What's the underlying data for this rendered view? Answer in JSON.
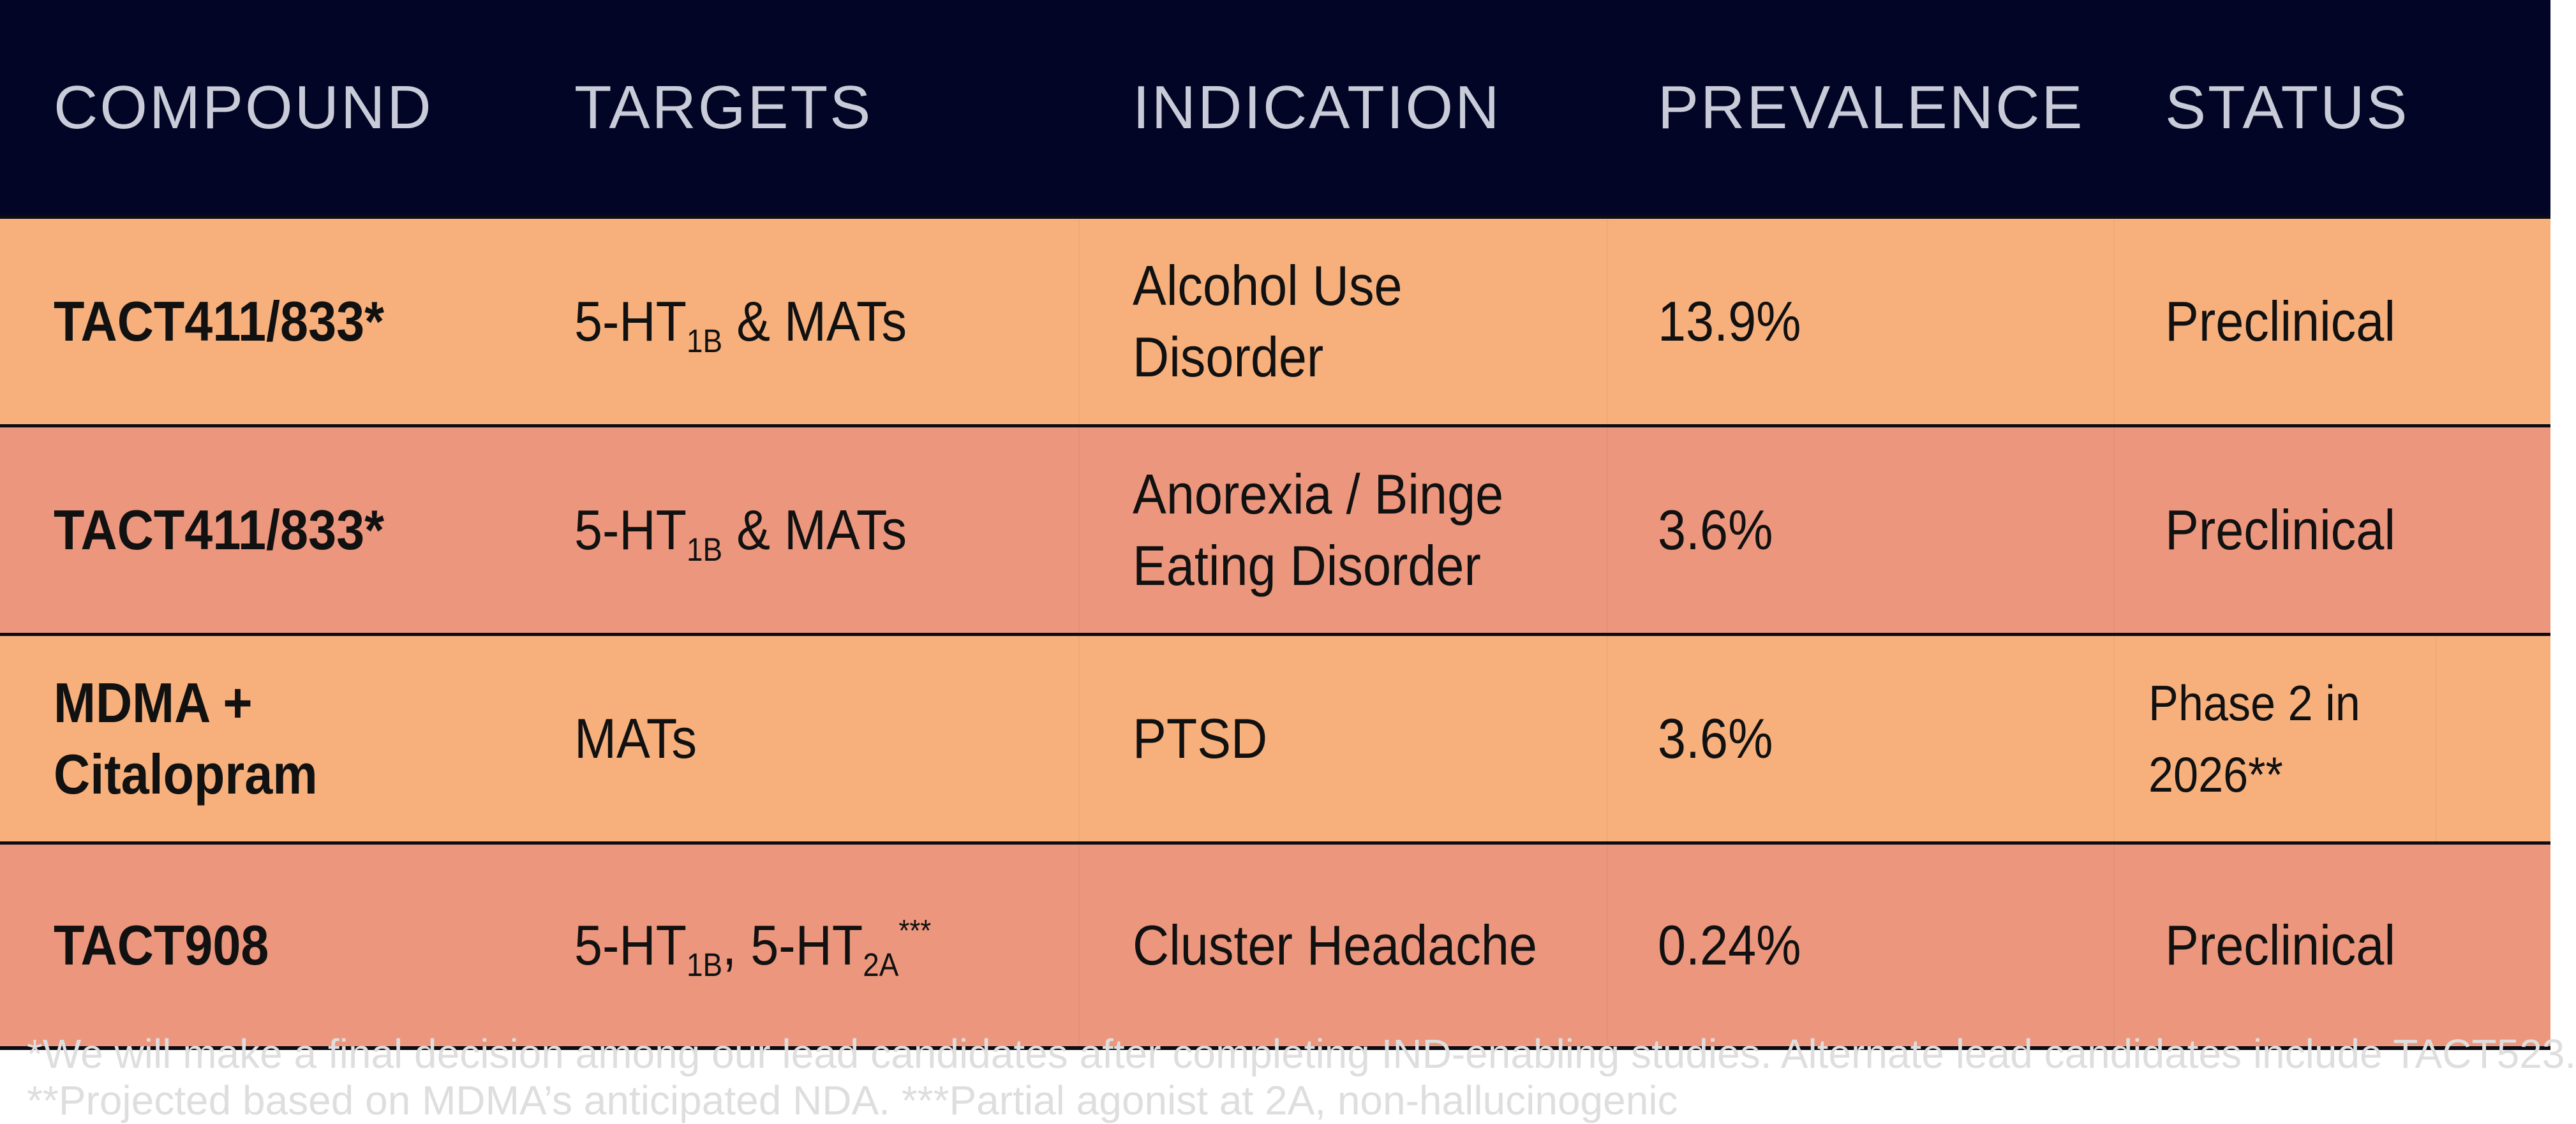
{
  "table": {
    "headers": [
      "COMPOUND",
      "TARGETS",
      "INDICATION",
      "PREVALENCE",
      "STATUS"
    ],
    "rows": [
      {
        "compound": "TACT411/833",
        "compound_mark": "*",
        "targets": {
          "pre": "5-HT",
          "sub1": "1B",
          "mid": " & MATs",
          "pre2": "",
          "sub2": "",
          "sup": ""
        },
        "indication": [
          "Alcohol Use",
          "Disorder"
        ],
        "prevalence": "13.9%",
        "status": "Preclinical"
      },
      {
        "compound": "TACT411/833",
        "compound_mark": "*",
        "targets": {
          "pre": "5-HT",
          "sub1": "1B",
          "mid": " & MATs",
          "pre2": "",
          "sub2": "",
          "sup": ""
        },
        "indication": [
          "Anorexia / Binge",
          "Eating Disorder"
        ],
        "prevalence": "3.6%",
        "status": "Preclinical"
      },
      {
        "compound_lines": [
          "MDMA +",
          "Citalopram"
        ],
        "targets": {
          "pre": "MATs",
          "sub1": "",
          "mid": "",
          "pre2": "",
          "sub2": "",
          "sup": ""
        },
        "indication": [
          "PTSD"
        ],
        "prevalence": "3.6%",
        "status": "Phase 2 in 2026**"
      },
      {
        "compound": "TACT908",
        "compound_mark": "",
        "targets": {
          "pre": "5-HT",
          "sub1": "1B",
          "mid": ", ",
          "pre2": "5-HT",
          "sub2": "2A",
          "sup": "***"
        },
        "indication": [
          "Cluster Headache"
        ],
        "prevalence": "0.24%",
        "status": "Preclinical"
      }
    ]
  },
  "footnotes": {
    "line1": "*We will make a final decision among our lead candidates after completing IND-enabling studies. Alternate lead candidates include TACT523.",
    "line2": "**Projected based on MDMA’s anticipated NDA. ***Partial agonist at 2A, non-hallucinogenic"
  },
  "colors": {
    "header_bg": "#020525",
    "header_text": "#c9ccd8",
    "row_orange": "#f7b07c",
    "row_salmon": "#ec977d",
    "footnote_text": "#dedede"
  }
}
